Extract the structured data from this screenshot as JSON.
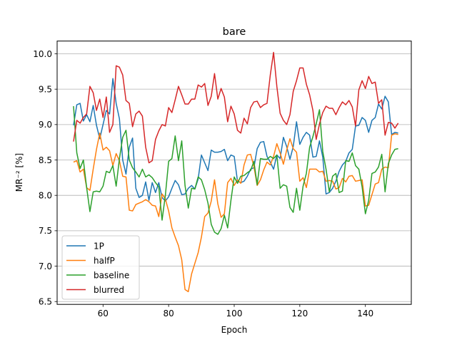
{
  "chart_data": {
    "type": "line",
    "title": "bare",
    "xlabel": "Epoch",
    "ylabel": "MR⁻² [%]",
    "xlim": [
      46,
      154
    ],
    "ylim": [
      6.46,
      10.18
    ],
    "xticks": [
      60,
      80,
      100,
      120,
      140
    ],
    "yticks": [
      6.5,
      7.0,
      7.5,
      8.0,
      8.5,
      9.0,
      9.5,
      10.0
    ],
    "ytick_labels": [
      "6.5",
      "7.0",
      "7.5",
      "8.0",
      "8.5",
      "9.0",
      "9.5",
      "10.0"
    ],
    "grid": "horizontal",
    "legend_position": "lower-left",
    "x_start": 51,
    "series": [
      {
        "name": "1P",
        "color": "#1f77b4",
        "values": [
          8.99,
          9.28,
          9.3,
          9.05,
          9.14,
          9.04,
          9.27,
          8.99,
          8.8,
          9.0,
          9.2,
          9.15,
          9.65,
          9.3,
          9.08,
          8.5,
          8.3,
          8.68,
          8.81,
          8.1,
          7.97,
          8.0,
          8.19,
          7.93,
          8.18,
          8.04,
          8.18,
          7.97,
          7.92,
          7.98,
          8.1,
          8.21,
          8.15,
          8.01,
          8.02,
          8.1,
          8.14,
          8.09,
          8.23,
          8.57,
          8.46,
          8.35,
          8.64,
          8.61,
          8.61,
          8.62,
          8.65,
          8.49,
          8.57,
          8.55,
          8.2,
          8.18,
          8.2,
          8.27,
          8.37,
          8.39,
          8.66,
          8.75,
          8.76,
          8.55,
          8.47,
          8.37,
          8.57,
          8.52,
          8.82,
          8.69,
          8.51,
          8.69,
          9.04,
          8.72,
          8.82,
          8.89,
          8.85,
          8.54,
          8.55,
          8.77,
          8.54,
          8.02,
          8.04,
          8.1,
          8.2,
          8.34,
          8.43,
          8.48,
          8.6,
          8.65,
          8.98,
          8.99,
          9.1,
          9.06,
          8.89,
          9.06,
          9.1,
          9.29,
          9.22,
          9.4,
          9.32,
          8.86,
          8.89,
          8.88
        ],
        "note_x_values": "x = x_start + index"
      },
      {
        "name": "halfP",
        "color": "#ff7f0e",
        "values": [
          8.47,
          8.49,
          8.33,
          8.37,
          8.11,
          8.07,
          8.37,
          8.65,
          8.88,
          8.64,
          8.68,
          8.63,
          8.42,
          8.59,
          8.49,
          8.27,
          8.26,
          7.79,
          7.78,
          7.87,
          7.89,
          7.91,
          7.94,
          7.91,
          7.86,
          7.85,
          7.7,
          8.02,
          7.95,
          7.78,
          7.54,
          7.41,
          7.29,
          7.09,
          6.67,
          6.64,
          6.89,
          7.04,
          7.19,
          7.41,
          7.7,
          7.75,
          7.92,
          8.22,
          7.88,
          7.69,
          7.74,
          8.18,
          8.24,
          8.14,
          8.22,
          8.17,
          8.43,
          8.57,
          8.58,
          8.41,
          8.14,
          8.22,
          8.36,
          8.47,
          8.43,
          8.55,
          8.73,
          8.6,
          8.44,
          8.64,
          8.8,
          8.66,
          8.61,
          8.2,
          8.25,
          8.11,
          8.37,
          8.37,
          8.37,
          8.33,
          8.34,
          8.2,
          8.21,
          8.2,
          8.09,
          8.11,
          8.24,
          8.19,
          8.27,
          8.28,
          8.2,
          8.21,
          8.22,
          7.85,
          7.86,
          8.01,
          8.16,
          8.18,
          8.37,
          8.4,
          8.39,
          8.85,
          8.87,
          8.86
        ]
      },
      {
        "name": "baseline",
        "color": "#2ca02c",
        "values": [
          9.26,
          8.6,
          8.38,
          8.5,
          8.11,
          7.77,
          8.05,
          8.06,
          8.05,
          8.13,
          8.34,
          8.32,
          8.42,
          8.13,
          8.52,
          8.82,
          8.92,
          8.5,
          8.39,
          8.33,
          8.26,
          8.37,
          8.26,
          8.29,
          8.25,
          8.18,
          8.12,
          7.65,
          8.0,
          8.48,
          8.52,
          8.84,
          8.49,
          8.77,
          8.14,
          7.82,
          8.1,
          8.09,
          8.26,
          8.22,
          8.08,
          7.89,
          7.59,
          7.48,
          7.45,
          7.53,
          7.72,
          7.54,
          7.93,
          8.26,
          8.17,
          8.27,
          8.28,
          8.32,
          8.35,
          8.48,
          8.15,
          8.52,
          8.51,
          8.51,
          8.55,
          8.52,
          8.57,
          8.1,
          8.15,
          8.13,
          7.83,
          7.76,
          8.1,
          7.79,
          8.13,
          8.31,
          8.68,
          8.83,
          9.01,
          9.21,
          8.62,
          8.37,
          8.05,
          8.27,
          8.31,
          8.04,
          8.06,
          8.49,
          8.48,
          8.6,
          8.42,
          8.37,
          8.12,
          7.74,
          7.93,
          8.31,
          8.33,
          8.4,
          8.58,
          8.05,
          8.45,
          8.57,
          8.65,
          8.66
        ]
      },
      {
        "name": "blurred",
        "color": "#d62728",
        "values": [
          8.76,
          9.06,
          9.02,
          9.1,
          9.15,
          9.54,
          9.45,
          9.2,
          9.36,
          9.1,
          9.39,
          8.89,
          9.0,
          9.83,
          9.81,
          9.7,
          9.34,
          9.3,
          8.97,
          9.15,
          9.19,
          9.12,
          8.68,
          8.46,
          8.49,
          8.79,
          8.91,
          9.0,
          8.98,
          9.24,
          9.17,
          9.35,
          9.54,
          9.42,
          9.29,
          9.29,
          9.36,
          9.36,
          9.56,
          9.53,
          9.58,
          9.27,
          9.4,
          9.72,
          9.36,
          9.51,
          9.39,
          9.04,
          9.26,
          9.15,
          8.92,
          8.88,
          9.09,
          9.01,
          9.24,
          9.32,
          9.33,
          9.24,
          9.28,
          9.3,
          9.7,
          10.02,
          9.54,
          9.16,
          9.06,
          9.0,
          9.14,
          9.47,
          9.62,
          9.8,
          9.8,
          9.57,
          9.42,
          9.2,
          8.79,
          9.01,
          9.17,
          9.26,
          9.23,
          9.23,
          9.14,
          9.24,
          9.32,
          9.28,
          9.34,
          9.25,
          8.98,
          9.49,
          9.62,
          9.51,
          9.68,
          9.58,
          9.6,
          9.3,
          9.35,
          8.85,
          9.03,
          9.02,
          8.95,
          9.02
        ]
      }
    ]
  }
}
